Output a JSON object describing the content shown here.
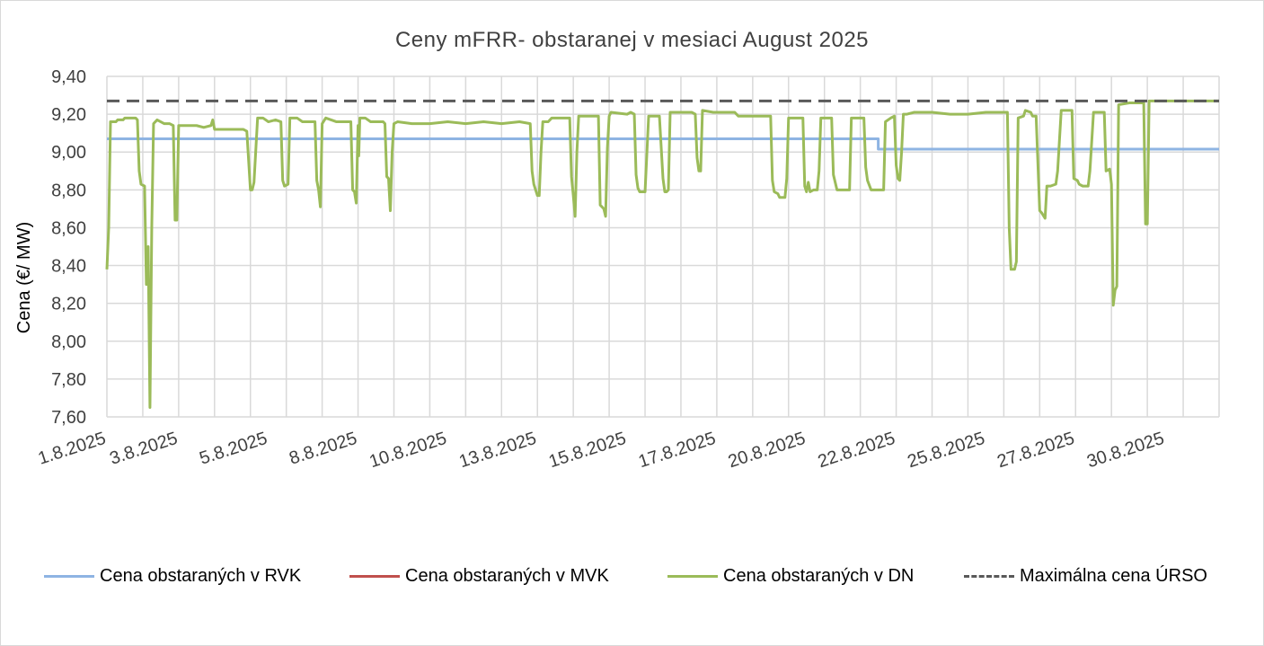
{
  "chart_data": {
    "type": "line",
    "title": "Ceny mFRR- obstaranej v mesiaci August 2025",
    "xlabel": "",
    "ylabel": "Cena (€/ MW)",
    "ylim": [
      7.6,
      9.4
    ],
    "ytick_labels": [
      "7,60",
      "7,80",
      "8,00",
      "8,20",
      "8,40",
      "8,60",
      "8,80",
      "9,00",
      "9,20",
      "9,40"
    ],
    "xlim": [
      1,
      32
    ],
    "xtick_labels": [
      {
        "day": 1,
        "label": "1.8.2025"
      },
      {
        "day": 3,
        "label": "3.8.2025"
      },
      {
        "day": 5.5,
        "label": "5.8.2025"
      },
      {
        "day": 8,
        "label": "8.8.2025"
      },
      {
        "day": 10.5,
        "label": "10.8.2025"
      },
      {
        "day": 13,
        "label": "13.8.2025"
      },
      {
        "day": 15.5,
        "label": "15.8.2025"
      },
      {
        "day": 18,
        "label": "17.8.2025"
      },
      {
        "day": 20.5,
        "label": "20.8.2025"
      },
      {
        "day": 23,
        "label": "22.8.2025"
      },
      {
        "day": 25.5,
        "label": "25.8.2025"
      },
      {
        "day": 28,
        "label": "27.8.2025"
      },
      {
        "day": 30.5,
        "label": "30.8.2025"
      }
    ],
    "grid": true,
    "legend_position": "bottom",
    "series": [
      {
        "name": "Cena obstaraných v RVK",
        "color": "#8eb4e3",
        "dashed": false,
        "points": [
          [
            1,
            9.07
          ],
          [
            22.5,
            9.07
          ],
          [
            22.5,
            9.015
          ],
          [
            32,
            9.015
          ]
        ]
      },
      {
        "name": "Cena obstaraných v MVK",
        "color": "#c0504d",
        "dashed": false,
        "points": []
      },
      {
        "name": "Cena obstaraných v DN",
        "color": "#9bbb59",
        "dashed": false,
        "points": [
          [
            1.0,
            8.38
          ],
          [
            1.05,
            8.6
          ],
          [
            1.1,
            9.16
          ],
          [
            1.25,
            9.16
          ],
          [
            1.3,
            9.17
          ],
          [
            1.45,
            9.17
          ],
          [
            1.5,
            9.18
          ],
          [
            1.8,
            9.18
          ],
          [
            1.85,
            9.17
          ],
          [
            1.9,
            8.9
          ],
          [
            1.95,
            8.83
          ],
          [
            2.05,
            8.82
          ],
          [
            2.1,
            8.3
          ],
          [
            2.15,
            8.5
          ],
          [
            2.2,
            7.65
          ],
          [
            2.25,
            8.6
          ],
          [
            2.3,
            9.15
          ],
          [
            2.4,
            9.17
          ],
          [
            2.5,
            9.16
          ],
          [
            2.6,
            9.15
          ],
          [
            2.75,
            9.15
          ],
          [
            2.85,
            9.14
          ],
          [
            2.9,
            8.64
          ],
          [
            2.95,
            8.64
          ],
          [
            3.0,
            9.14
          ],
          [
            3.1,
            9.14
          ],
          [
            3.5,
            9.14
          ],
          [
            3.7,
            9.13
          ],
          [
            3.9,
            9.14
          ],
          [
            3.95,
            9.17
          ],
          [
            4.0,
            9.12
          ],
          [
            4.3,
            9.12
          ],
          [
            4.6,
            9.12
          ],
          [
            4.8,
            9.12
          ],
          [
            4.9,
            9.11
          ],
          [
            5.0,
            8.8
          ],
          [
            5.05,
            8.8
          ],
          [
            5.1,
            8.84
          ],
          [
            5.2,
            9.18
          ],
          [
            5.35,
            9.18
          ],
          [
            5.5,
            9.16
          ],
          [
            5.7,
            9.17
          ],
          [
            5.85,
            9.16
          ],
          [
            5.9,
            8.85
          ],
          [
            5.95,
            8.82
          ],
          [
            6.05,
            8.83
          ],
          [
            6.1,
            9.18
          ],
          [
            6.3,
            9.18
          ],
          [
            6.45,
            9.16
          ],
          [
            6.8,
            9.16
          ],
          [
            6.85,
            8.85
          ],
          [
            6.9,
            8.8
          ],
          [
            6.95,
            8.71
          ],
          [
            7.0,
            9.15
          ],
          [
            7.1,
            9.18
          ],
          [
            7.25,
            9.17
          ],
          [
            7.4,
            9.16
          ],
          [
            7.8,
            9.16
          ],
          [
            7.85,
            8.8
          ],
          [
            7.9,
            8.79
          ],
          [
            7.95,
            8.73
          ],
          [
            8.0,
            9.14
          ],
          [
            8.02,
            8.98
          ],
          [
            8.05,
            9.18
          ],
          [
            8.2,
            9.18
          ],
          [
            8.35,
            9.16
          ],
          [
            8.7,
            9.16
          ],
          [
            8.75,
            9.15
          ],
          [
            8.8,
            8.87
          ],
          [
            8.85,
            8.86
          ],
          [
            8.9,
            8.69
          ],
          [
            8.95,
            9.0
          ],
          [
            9.0,
            9.15
          ],
          [
            9.1,
            9.16
          ],
          [
            9.5,
            9.15
          ],
          [
            10.0,
            9.15
          ],
          [
            10.5,
            9.16
          ],
          [
            11.0,
            9.15
          ],
          [
            11.5,
            9.16
          ],
          [
            12.0,
            9.15
          ],
          [
            12.5,
            9.16
          ],
          [
            12.8,
            9.15
          ],
          [
            12.85,
            8.9
          ],
          [
            12.9,
            8.83
          ],
          [
            13.0,
            8.77
          ],
          [
            13.05,
            8.77
          ],
          [
            13.1,
            9.0
          ],
          [
            13.15,
            9.16
          ],
          [
            13.3,
            9.16
          ],
          [
            13.4,
            9.18
          ],
          [
            13.9,
            9.18
          ],
          [
            13.95,
            8.87
          ],
          [
            14.0,
            8.77
          ],
          [
            14.05,
            8.66
          ],
          [
            14.1,
            9.0
          ],
          [
            14.15,
            9.19
          ],
          [
            14.7,
            9.19
          ],
          [
            14.75,
            8.72
          ],
          [
            14.85,
            8.7
          ],
          [
            14.9,
            8.66
          ],
          [
            14.95,
            9.02
          ],
          [
            15.0,
            9.19
          ],
          [
            15.05,
            9.21
          ],
          [
            15.5,
            9.2
          ],
          [
            15.6,
            9.21
          ],
          [
            15.7,
            9.2
          ],
          [
            15.75,
            8.88
          ],
          [
            15.8,
            8.81
          ],
          [
            15.85,
            8.79
          ],
          [
            16.0,
            8.79
          ],
          [
            16.1,
            9.19
          ],
          [
            16.4,
            9.19
          ],
          [
            16.5,
            8.86
          ],
          [
            16.55,
            8.79
          ],
          [
            16.6,
            8.79
          ],
          [
            16.65,
            8.8
          ],
          [
            16.7,
            9.21
          ],
          [
            17.0,
            9.21
          ],
          [
            17.3,
            9.21
          ],
          [
            17.4,
            9.2
          ],
          [
            17.45,
            8.97
          ],
          [
            17.5,
            8.9
          ],
          [
            17.55,
            8.9
          ],
          [
            17.6,
            9.22
          ],
          [
            17.9,
            9.21
          ],
          [
            18.2,
            9.21
          ],
          [
            18.5,
            9.21
          ],
          [
            18.6,
            9.19
          ],
          [
            19.0,
            9.19
          ],
          [
            19.4,
            9.19
          ],
          [
            19.5,
            9.19
          ],
          [
            19.55,
            8.85
          ],
          [
            19.6,
            8.79
          ],
          [
            19.7,
            8.78
          ],
          [
            19.75,
            8.76
          ],
          [
            19.9,
            8.76
          ],
          [
            19.95,
            8.86
          ],
          [
            20.0,
            9.18
          ],
          [
            20.4,
            9.18
          ],
          [
            20.45,
            8.82
          ],
          [
            20.5,
            8.79
          ],
          [
            20.55,
            8.84
          ],
          [
            20.6,
            8.79
          ],
          [
            20.7,
            8.8
          ],
          [
            20.8,
            8.8
          ],
          [
            20.85,
            8.9
          ],
          [
            20.9,
            9.18
          ],
          [
            21.2,
            9.18
          ],
          [
            21.25,
            8.88
          ],
          [
            21.35,
            8.8
          ],
          [
            21.4,
            8.8
          ],
          [
            21.7,
            8.8
          ],
          [
            21.75,
            9.18
          ],
          [
            21.95,
            9.18
          ],
          [
            22.1,
            9.18
          ],
          [
            22.15,
            8.92
          ],
          [
            22.2,
            8.85
          ],
          [
            22.3,
            8.8
          ],
          [
            22.65,
            8.8
          ],
          [
            22.7,
            9.16
          ],
          [
            22.85,
            9.18
          ],
          [
            22.95,
            9.19
          ],
          [
            23.0,
            8.93
          ],
          [
            23.05,
            8.86
          ],
          [
            23.1,
            8.85
          ],
          [
            23.15,
            9.0
          ],
          [
            23.2,
            9.2
          ],
          [
            23.3,
            9.2
          ],
          [
            23.5,
            9.21
          ],
          [
            24.0,
            9.21
          ],
          [
            24.5,
            9.2
          ],
          [
            25.0,
            9.2
          ],
          [
            25.5,
            9.21
          ],
          [
            26.0,
            9.21
          ],
          [
            26.1,
            9.21
          ],
          [
            26.15,
            8.6
          ],
          [
            26.2,
            8.38
          ],
          [
            26.3,
            8.38
          ],
          [
            26.35,
            8.42
          ],
          [
            26.4,
            9.18
          ],
          [
            26.55,
            9.19
          ],
          [
            26.6,
            9.22
          ],
          [
            26.75,
            9.21
          ],
          [
            26.8,
            9.19
          ],
          [
            26.9,
            9.19
          ],
          [
            27.0,
            8.69
          ],
          [
            27.05,
            8.68
          ],
          [
            27.15,
            8.65
          ],
          [
            27.2,
            8.82
          ],
          [
            27.3,
            8.82
          ],
          [
            27.45,
            8.83
          ],
          [
            27.5,
            8.9
          ],
          [
            27.6,
            9.22
          ],
          [
            27.9,
            9.22
          ],
          [
            27.95,
            8.86
          ],
          [
            28.05,
            8.85
          ],
          [
            28.1,
            8.83
          ],
          [
            28.2,
            8.82
          ],
          [
            28.35,
            8.82
          ],
          [
            28.4,
            8.9
          ],
          [
            28.5,
            9.21
          ],
          [
            28.8,
            9.21
          ],
          [
            28.85,
            8.9
          ],
          [
            28.95,
            8.91
          ],
          [
            29.0,
            8.83
          ],
          [
            29.05,
            8.19
          ],
          [
            29.1,
            8.27
          ],
          [
            29.15,
            8.29
          ],
          [
            29.2,
            9.25
          ],
          [
            29.5,
            9.26
          ],
          [
            29.9,
            9.26
          ],
          [
            29.95,
            8.62
          ],
          [
            30.0,
            8.62
          ],
          [
            30.05,
            9.27
          ],
          [
            30.5,
            9.27
          ],
          [
            31.0,
            9.27
          ],
          [
            31.5,
            9.27
          ],
          [
            32.0,
            9.27
          ]
        ]
      },
      {
        "name": "Maximálna cena ÚRSO",
        "color": "#595959",
        "dashed": true,
        "points": [
          [
            1,
            9.27
          ],
          [
            32,
            9.27
          ]
        ]
      }
    ]
  }
}
